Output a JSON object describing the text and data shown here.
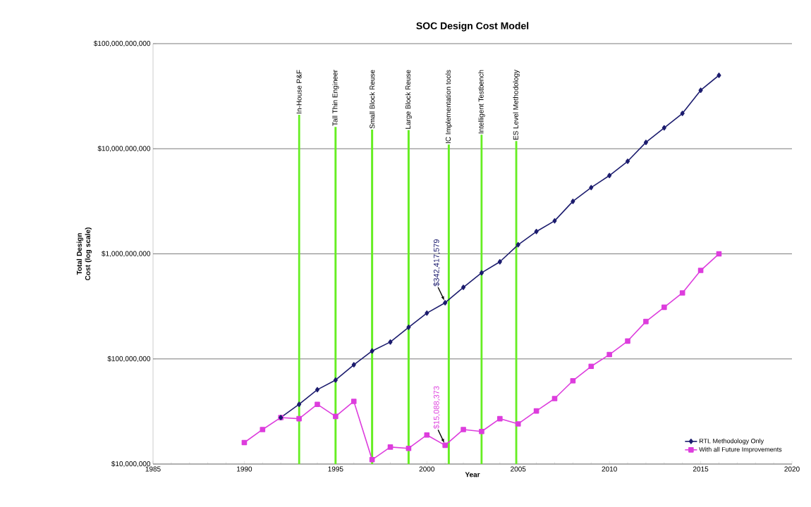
{
  "chart_data": {
    "type": "line",
    "title": "SOC Design Cost Model",
    "xlabel": "Year",
    "ylabel": "Total Design Cost (log scale)",
    "series": [
      {
        "name": "RTL Methodology Only",
        "color": "#1c1c6e",
        "marker": "diamond",
        "x": [
          1992,
          1993,
          1994,
          1995,
          1996,
          1997,
          1998,
          1999,
          2000,
          2001,
          2002,
          2003,
          2004,
          2005,
          2006,
          2007,
          2008,
          2009,
          2010,
          2011,
          2012,
          2013,
          2014,
          2015,
          2016
        ],
        "values": [
          27700000,
          37000000,
          51000000,
          63000000,
          88000000,
          119000000,
          145000000,
          200000000,
          273000000,
          342417579,
          480000000,
          660000000,
          840000000,
          1220000000,
          1630000000,
          2060000000,
          3160000000,
          4270000000,
          5560000000,
          7600000000,
          11500000000,
          15800000000,
          21700000000,
          36000000000,
          50000000000
        ]
      },
      {
        "name": "With all Future Improvements",
        "color": "#dd3ddd",
        "marker": "square",
        "x": [
          1990,
          1991,
          1992,
          1993,
          1994,
          1995,
          1996,
          1997,
          1998,
          1999,
          2000,
          2001,
          2002,
          2003,
          2004,
          2005,
          2006,
          2007,
          2008,
          2009,
          2010,
          2011,
          2012,
          2013,
          2014,
          2015,
          2016
        ],
        "values": [
          16000000,
          21300000,
          27700000,
          27000000,
          37000000,
          28400000,
          39500000,
          11000000,
          14500000,
          14100000,
          18900000,
          15088373,
          21300000,
          20400000,
          27000000,
          24100000,
          32000000,
          42000000,
          62000000,
          85000000,
          110000000,
          148000000,
          227000000,
          310000000,
          425000000,
          695000000,
          1000000000
        ]
      }
    ],
    "xlim": [
      1985,
      2020
    ],
    "xticks": [
      1985,
      1990,
      1995,
      2000,
      2005,
      2010,
      2015,
      2020
    ],
    "ylim": [
      10000000,
      100000000000
    ],
    "yticks": [
      {
        "value": 10000000,
        "label": "$10,000,000"
      },
      {
        "value": 100000000,
        "label": "$100,000,000"
      },
      {
        "value": 1000000000,
        "label": "$1,000,000,000"
      },
      {
        "value": 10000000000,
        "label": "$10,000,000,000"
      },
      {
        "value": 100000000000,
        "label": "$100,000,000,000"
      }
    ],
    "log": "y",
    "grid": "y",
    "legend": "bottom right",
    "line_style": "solid",
    "ref_lines": [
      {
        "axis": "x",
        "value": 1993,
        "label": "In-House P&F",
        "color": "#66ee22"
      },
      {
        "axis": "x",
        "value": 1995,
        "label": "Tall Thin Engineer",
        "color": "#66ee22"
      },
      {
        "axis": "x",
        "value": 1997,
        "label": "Small Block Reuse",
        "color": "#66ee22"
      },
      {
        "axis": "x",
        "value": 1999,
        "label": "Large Block Reuse",
        "color": "#66ee22"
      },
      {
        "axis": "x",
        "value": 2001.2,
        "label": "IC Implementation tools",
        "color": "#66ee22"
      },
      {
        "axis": "x",
        "value": 2003,
        "label": "Intelligent Testbench",
        "color": "#66ee22"
      },
      {
        "axis": "x",
        "value": 2004.9,
        "label": "ES Level Methodology",
        "color": "#66ee22"
      }
    ],
    "annotations": [
      {
        "text": "$342,417,579",
        "x": 2001,
        "y": 342417579
      },
      {
        "text": "$15,088,373",
        "x": 2001,
        "y": 15088373
      }
    ]
  }
}
